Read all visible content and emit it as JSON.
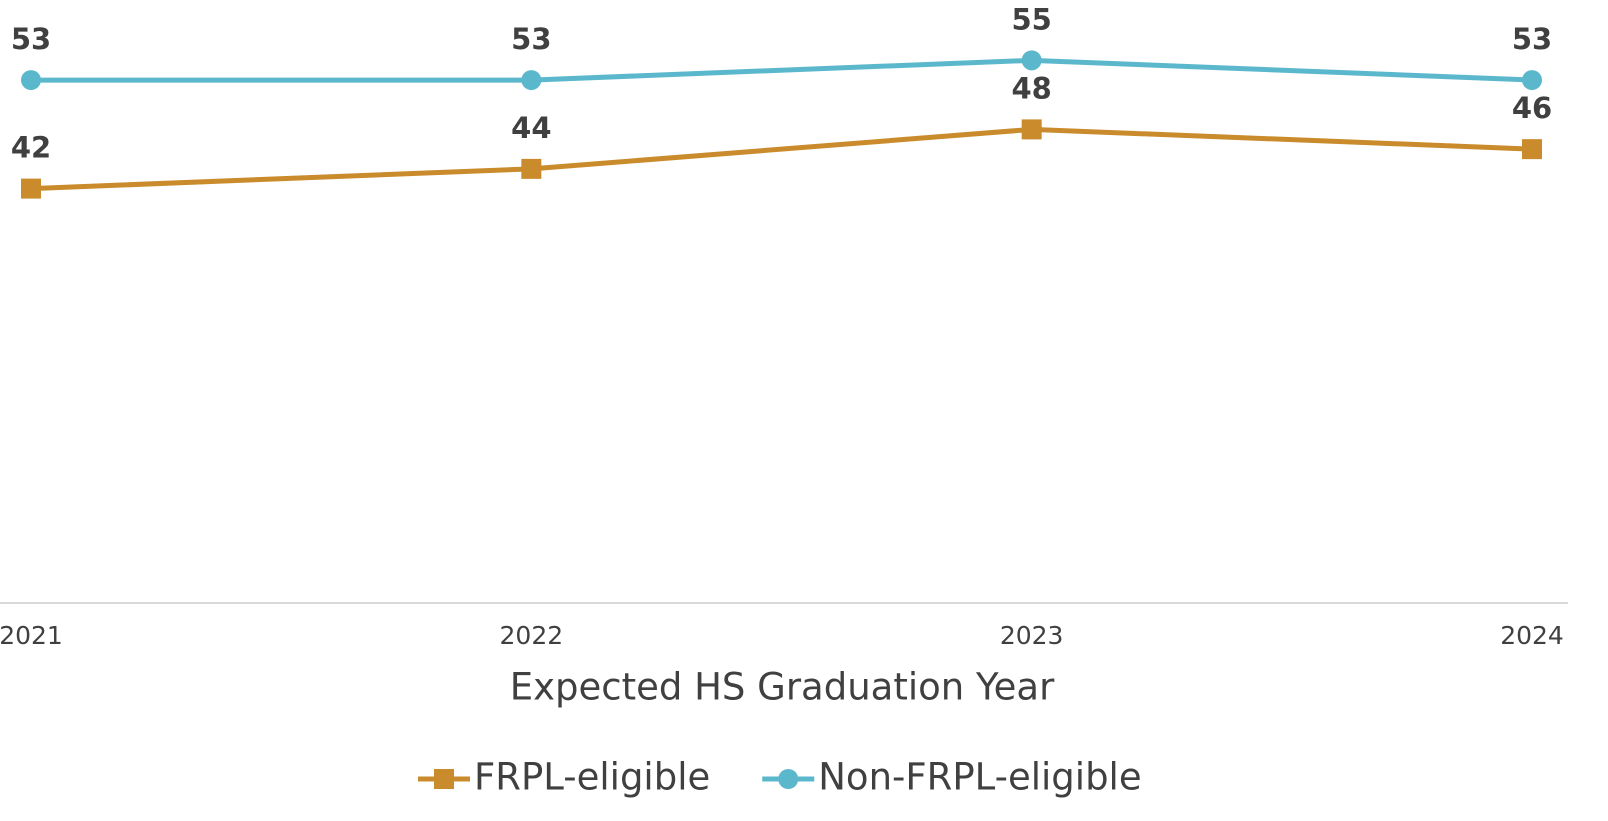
{
  "chart_data": {
    "type": "line",
    "x_label": "Expected HS Graduation Year",
    "categories": [
      "2021",
      "2022",
      "2023",
      "2024"
    ],
    "series": [
      {
        "name": "FRPL-eligible",
        "color": "#c98b2b",
        "marker": "square",
        "values": [
          42,
          44,
          48,
          46
        ]
      },
      {
        "name": "Non-FRPL-eligible",
        "color": "#5bb8cc",
        "marker": "circle",
        "values": [
          53,
          53,
          55,
          53
        ]
      }
    ],
    "ylim": [
      0,
      60
    ],
    "legend": "bottom",
    "grid": false
  }
}
